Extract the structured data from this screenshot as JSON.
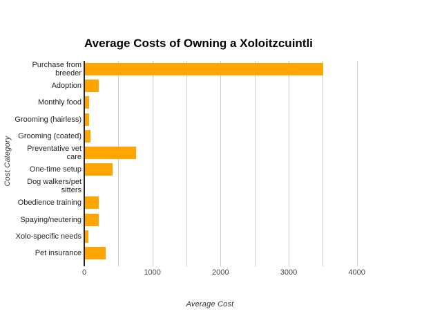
{
  "chart_data": {
    "type": "bar",
    "orientation": "horizontal",
    "title": "Average Costs of Owning a Xoloitzcuintli",
    "xlabel": "Average Cost",
    "ylabel": "Cost Category",
    "categories": [
      "Purchase from breeder",
      "Adoption",
      "Monthly food",
      "Grooming (hairless)",
      "Grooming (coated)",
      "Preventative vet care",
      "One-time setup",
      "Dog walkers/pet sitters",
      "Obedience training",
      "Spaying/neutering",
      "Xolo-specific needs",
      "Pet insurance"
    ],
    "values": [
      3500,
      200,
      65,
      65,
      85,
      750,
      400,
      0,
      200,
      200,
      50,
      300
    ],
    "xlim": [
      0,
      4500
    ],
    "x_tick_values": [
      0,
      1000,
      2000,
      3000,
      4000
    ],
    "x_tick_labels": [
      "0",
      "1000",
      "2000",
      "3000",
      "4000"
    ],
    "x_gridline_step": 500,
    "grid": true,
    "legend": "none",
    "colors": {
      "bar": "#ffa500",
      "gridline": "#cccccc",
      "axis_line": "#222222",
      "tick_label": "#444444",
      "category_label": "#222222",
      "title": "#000000",
      "axis_title": "#333333",
      "background": "#ffffff"
    }
  }
}
